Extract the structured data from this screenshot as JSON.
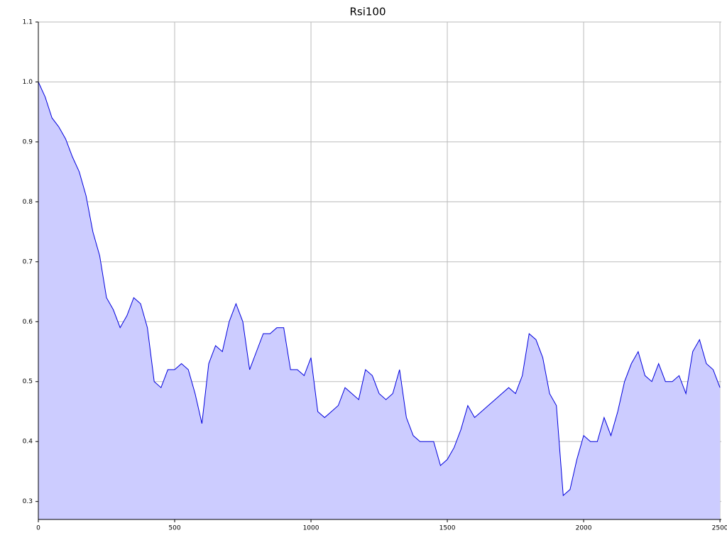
{
  "chart_data": {
    "type": "area",
    "title": "Rsi100",
    "x": [
      0,
      25,
      50,
      75,
      100,
      125,
      150,
      175,
      200,
      225,
      250,
      275,
      300,
      325,
      350,
      375,
      400,
      425,
      450,
      475,
      500,
      525,
      550,
      575,
      600,
      625,
      650,
      675,
      700,
      725,
      750,
      775,
      800,
      825,
      850,
      875,
      900,
      925,
      950,
      975,
      1000,
      1025,
      1050,
      1075,
      1100,
      1125,
      1150,
      1175,
      1200,
      1225,
      1250,
      1275,
      1300,
      1325,
      1350,
      1375,
      1400,
      1425,
      1450,
      1475,
      1500,
      1525,
      1550,
      1575,
      1600,
      1625,
      1650,
      1675,
      1700,
      1725,
      1750,
      1775,
      1800,
      1825,
      1850,
      1875,
      1900,
      1925,
      1950,
      1975,
      2000,
      2025,
      2050,
      2075,
      2100,
      2125,
      2150,
      2175,
      2200,
      2225,
      2250,
      2275,
      2300,
      2325,
      2350,
      2375,
      2400,
      2425,
      2450,
      2475,
      2500
    ],
    "series": [
      {
        "color": "#0000dd",
        "fill": "#ccccff",
        "values": [
          1.0,
          0.975,
          0.94,
          0.925,
          0.905,
          0.875,
          0.85,
          0.81,
          0.75,
          0.71,
          0.64,
          0.62,
          0.59,
          0.61,
          0.64,
          0.63,
          0.59,
          0.5,
          0.49,
          0.52,
          0.52,
          0.53,
          0.52,
          0.48,
          0.43,
          0.53,
          0.56,
          0.55,
          0.6,
          0.63,
          0.6,
          0.52,
          0.55,
          0.58,
          0.58,
          0.59,
          0.59,
          0.52,
          0.52,
          0.51,
          0.54,
          0.45,
          0.44,
          0.45,
          0.46,
          0.49,
          0.48,
          0.47,
          0.52,
          0.51,
          0.48,
          0.47,
          0.48,
          0.52,
          0.44,
          0.41,
          0.4,
          0.4,
          0.4,
          0.36,
          0.37,
          0.39,
          0.42,
          0.46,
          0.44,
          0.45,
          0.46,
          0.47,
          0.48,
          0.49,
          0.48,
          0.51,
          0.58,
          0.57,
          0.54,
          0.48,
          0.46,
          0.31,
          0.32,
          0.37,
          0.41,
          0.4,
          0.4,
          0.44,
          0.41,
          0.45,
          0.5,
          0.53,
          0.55,
          0.51,
          0.5,
          0.53,
          0.5,
          0.5,
          0.51,
          0.48,
          0.55,
          0.57,
          0.53,
          0.52,
          0.49
        ]
      }
    ],
    "xlim": [
      0,
      2505
    ],
    "ylim": [
      0.27,
      1.1
    ],
    "xticks": [
      0,
      500,
      1000,
      1500,
      2000,
      2500
    ],
    "yticks": [
      0.3,
      0.4,
      0.5,
      0.6,
      0.7,
      0.8,
      0.9,
      {
        "value": 1,
        "label": "1.0"
      },
      1.1
    ],
    "grid": true
  }
}
